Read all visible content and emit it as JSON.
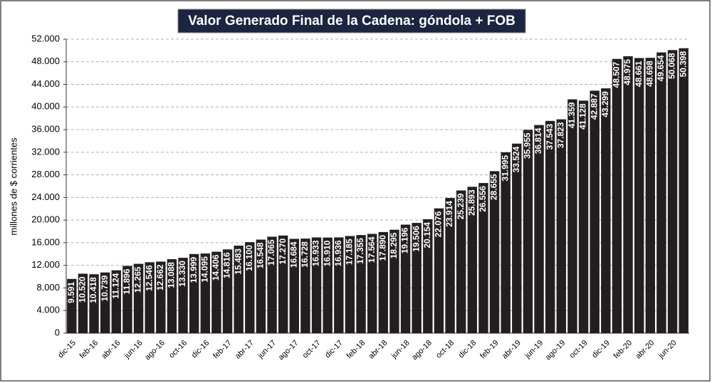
{
  "chart_data": {
    "type": "bar",
    "title": "Valor Generado Final de la Cadena: góndola + FOB",
    "ylabel": "millones de $ corrientes",
    "categories": [
      "dic-15",
      null,
      "feb-16",
      null,
      "abr-16",
      null,
      "jun-16",
      null,
      "ago-16",
      null,
      "oct-16",
      null,
      "dic-16",
      null,
      "feb-17",
      null,
      "abr-17",
      null,
      "jun-17",
      null,
      "ago-17",
      null,
      "oct-17",
      null,
      "dic-17",
      null,
      "feb-18",
      null,
      "abr-18",
      null,
      "jun-18",
      null,
      "ago-18",
      null,
      "oct-18",
      null,
      "dic-18",
      null,
      "feb-19",
      null,
      "abr-19",
      null,
      "jun-19",
      null,
      "ago-19",
      null,
      "oct-19",
      null,
      "dic-19",
      null,
      "feb-20",
      null,
      "abr-20",
      null,
      "jun-20",
      null
    ],
    "values": [
      9591,
      10520,
      10418,
      10739,
      11124,
      11896,
      12265,
      12546,
      12662,
      13088,
      13330,
      13999,
      14095,
      14406,
      14816,
      15483,
      16100,
      16548,
      17065,
      17270,
      16684,
      16728,
      16933,
      16910,
      16936,
      17185,
      17355,
      17564,
      17890,
      18295,
      19196,
      19506,
      20154,
      22076,
      23914,
      25239,
      25893,
      26556,
      28655,
      31995,
      33524,
      35955,
      36814,
      37543,
      37823,
      41359,
      41128,
      42887,
      43299,
      48507,
      48975,
      48661,
      48698,
      49654,
      50068,
      50398
    ],
    "value_labels": [
      "9.591",
      "10.520",
      "10.418",
      "10.739",
      "11.124",
      "11.896",
      "12.265",
      "12.546",
      "12.662",
      "13.088",
      "13.330",
      "13.999",
      "14.095",
      "14.406",
      "14.816",
      "15.483",
      "16.100",
      "16.548",
      "17.065",
      "17.270",
      "16.684",
      "16.728",
      "16.933",
      "16.910",
      "16.936",
      "17.185",
      "17.355",
      "17.564",
      "17.890",
      "18.295",
      "19.196",
      "19.506",
      "20.154",
      "22.076",
      "23.914",
      "25.239",
      "25.893",
      "26.556",
      "28.655",
      "31.995",
      "33.524",
      "35.955",
      "36.814",
      "37.543",
      "37.823",
      "41.359",
      "41.128",
      "42.887",
      "43.299",
      "48.507",
      "48.975",
      "48.661",
      "48.698",
      "49.654",
      "50.068",
      "50.398"
    ],
    "color": "#231f20",
    "ylim": [
      0,
      52000
    ],
    "yticks": [
      0,
      {
        "value": 4000,
        "label": "4.000"
      },
      {
        "value": 8000,
        "label": "8.000"
      },
      {
        "value": 12000,
        "label": "12.000"
      },
      {
        "value": 16000,
        "label": "16.000"
      },
      {
        "value": 20000,
        "label": "20.000"
      },
      {
        "value": 24000,
        "label": "24.000"
      },
      {
        "value": 28000,
        "label": "28.000"
      },
      {
        "value": 32000,
        "label": "32.000"
      },
      {
        "value": 36000,
        "label": "36.000"
      },
      {
        "value": 40000,
        "label": "40.000"
      },
      {
        "value": 44000,
        "label": "44.000"
      },
      {
        "value": 48000,
        "label": "48.000"
      },
      {
        "value": 52000,
        "label": "52.000"
      }
    ],
    "grid": true
  }
}
